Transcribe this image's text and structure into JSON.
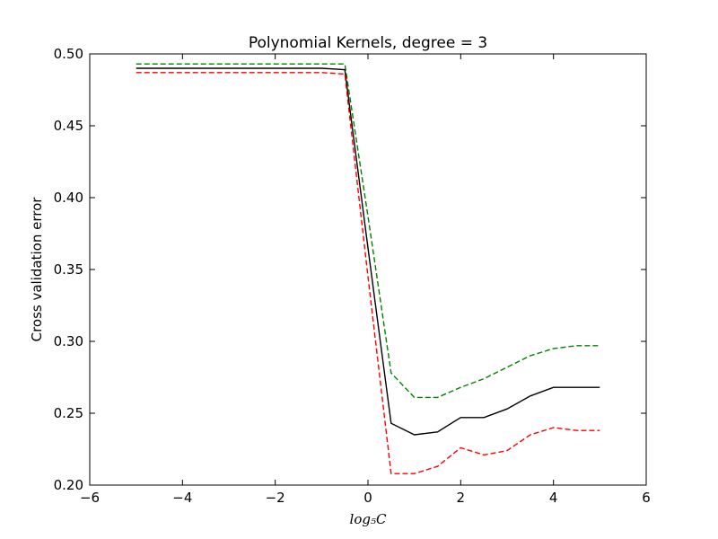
{
  "chart_data": {
    "type": "line",
    "title": "Polynomial Kernels, degree = 3",
    "xlabel": "log₅C",
    "ylabel": "Cross validation error",
    "xlim": [
      -6,
      6
    ],
    "ylim": [
      0.2,
      0.5
    ],
    "xticks": [
      -6,
      -4,
      -2,
      0,
      2,
      4,
      6
    ],
    "xtick_labels": [
      "−6",
      "−4",
      "−2",
      "0",
      "2",
      "4",
      "6"
    ],
    "yticks": [
      0.2,
      0.25,
      0.3,
      0.35,
      0.4,
      0.45,
      0.5
    ],
    "ytick_labels": [
      "0.20",
      "0.25",
      "0.30",
      "0.35",
      "0.40",
      "0.45",
      "0.50"
    ],
    "grid": false,
    "x": [
      -5,
      -4.5,
      -4,
      -3.5,
      -3,
      -2.5,
      -2,
      -1.5,
      -1,
      -0.5,
      0,
      0.5,
      1,
      1.5,
      2,
      2.5,
      3,
      3.5,
      4,
      4.5,
      5
    ],
    "series": [
      {
        "color": "#008000",
        "style": "dashed",
        "values": [
          0.493,
          0.493,
          0.493,
          0.493,
          0.493,
          0.493,
          0.493,
          0.493,
          0.493,
          0.493,
          0.387,
          0.278,
          0.261,
          0.261,
          0.268,
          0.274,
          0.282,
          0.29,
          0.295,
          0.297,
          0.297
        ]
      },
      {
        "color": "#000000",
        "style": "solid",
        "values": [
          0.49,
          0.49,
          0.49,
          0.49,
          0.49,
          0.49,
          0.49,
          0.49,
          0.49,
          0.489,
          0.365,
          0.243,
          0.235,
          0.237,
          0.247,
          0.247,
          0.253,
          0.262,
          0.268,
          0.268,
          0.268
        ]
      },
      {
        "color": "#ff0000",
        "style": "dashed",
        "values": [
          0.487,
          0.487,
          0.487,
          0.487,
          0.487,
          0.487,
          0.487,
          0.487,
          0.487,
          0.486,
          0.345,
          0.208,
          0.208,
          0.213,
          0.226,
          0.221,
          0.224,
          0.235,
          0.24,
          0.238,
          0.238
        ]
      }
    ]
  }
}
